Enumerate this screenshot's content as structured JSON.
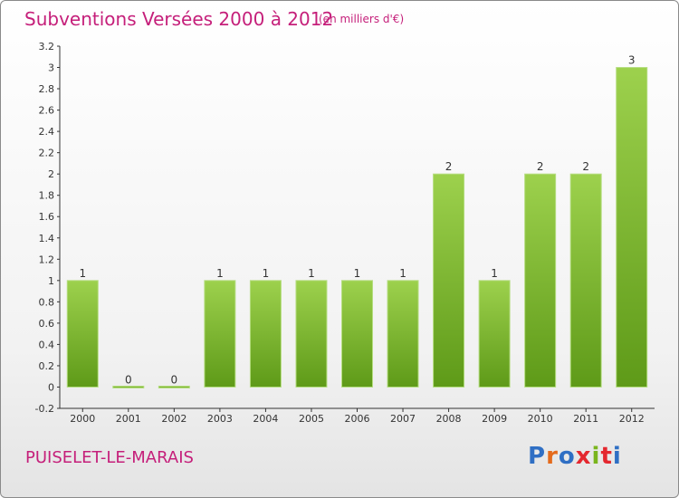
{
  "title": "Subventions Versées 2000 à 2012",
  "subtitle": "(en milliers d'€)",
  "commune": "PUISELET-LE-MARAIS",
  "logo": {
    "text": "Proxiti",
    "letters": [
      {
        "ch": "P",
        "color": "#2f6fc4"
      },
      {
        "ch": "r",
        "color": "#e46a1c"
      },
      {
        "ch": "o",
        "color": "#2f6fc4"
      },
      {
        "ch": "x",
        "color": "#e4282f"
      },
      {
        "ch": "i",
        "color": "#7ab51d"
      },
      {
        "ch": "t",
        "color": "#e4282f"
      },
      {
        "ch": "i",
        "color": "#2f6fc4"
      }
    ]
  },
  "colors": {
    "accent": "#c51f7a",
    "bar_top": "#9dd14d",
    "bar_bottom": "#5e9a18"
  },
  "chart_data": {
    "type": "bar",
    "categories": [
      "2000",
      "2001",
      "2002",
      "2003",
      "2004",
      "2005",
      "2006",
      "2007",
      "2008",
      "2009",
      "2010",
      "2011",
      "2012"
    ],
    "values": [
      1,
      0,
      0,
      1,
      1,
      1,
      1,
      1,
      2,
      1,
      2,
      2,
      3
    ],
    "data_labels": [
      "1",
      "0",
      "0",
      "1",
      "1",
      "1",
      "1",
      "1",
      "2",
      "1",
      "2",
      "2",
      "3"
    ],
    "yticks": [
      -0.2,
      0,
      0.2,
      0.4,
      0.6,
      0.8,
      1,
      1.2,
      1.4,
      1.6,
      1.8,
      2,
      2.2,
      2.4,
      2.6,
      2.8,
      3,
      3.2
    ],
    "ytick_labels": [
      "-0.2",
      "0",
      "0.2",
      "0.4",
      "0.6",
      "0.8",
      "1",
      "1.2",
      "1.4",
      "1.6",
      "1.8",
      "2",
      "2.2",
      "2.4",
      "2.6",
      "2.8",
      "3",
      "3.2"
    ],
    "ylim": [
      -0.2,
      3.2
    ],
    "grid": false,
    "legend": "none"
  }
}
